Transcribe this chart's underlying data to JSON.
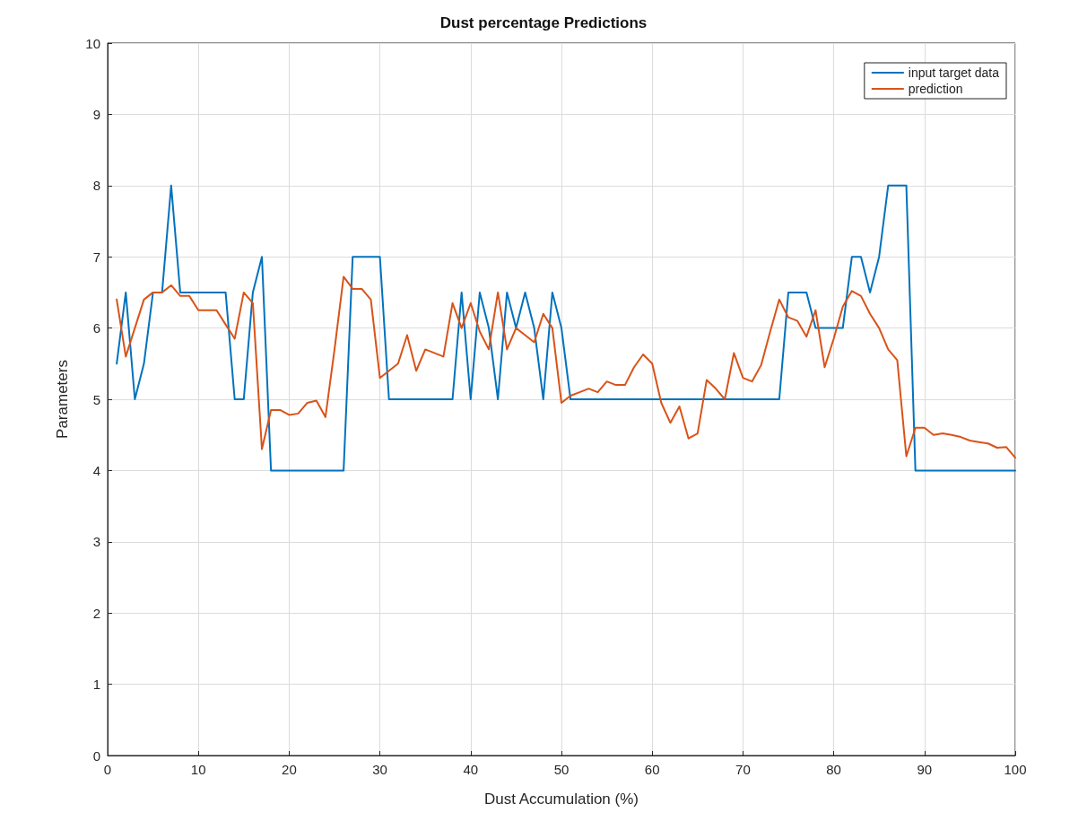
{
  "chart_data": {
    "type": "line",
    "title": "Dust percentage Predictions",
    "xlabel": "Dust Accumulation (%)",
    "ylabel": "Parameters",
    "x": [
      1,
      2,
      3,
      4,
      5,
      6,
      7,
      8,
      9,
      10,
      11,
      12,
      13,
      14,
      15,
      16,
      17,
      18,
      19,
      20,
      21,
      22,
      23,
      24,
      25,
      26,
      27,
      28,
      29,
      30,
      31,
      32,
      33,
      34,
      35,
      36,
      37,
      38,
      39,
      40,
      41,
      42,
      43,
      44,
      45,
      46,
      47,
      48,
      49,
      50,
      51,
      52,
      53,
      54,
      55,
      56,
      57,
      58,
      59,
      60,
      61,
      62,
      63,
      64,
      65,
      66,
      67,
      68,
      69,
      70,
      71,
      72,
      73,
      74,
      75,
      76,
      77,
      78,
      79,
      80,
      81,
      82,
      83,
      84,
      85,
      86,
      87,
      88,
      89,
      90,
      91,
      92,
      93,
      94,
      95,
      96,
      97,
      98,
      99,
      100
    ],
    "series": [
      {
        "name": "input target data",
        "color": "#0072bd",
        "values": [
          5.5,
          6.5,
          5,
          5.5,
          6.5,
          6.5,
          8,
          6.5,
          6.5,
          6.5,
          6.5,
          6.5,
          6.5,
          5,
          5,
          6.5,
          7,
          4,
          4,
          4,
          4,
          4,
          4,
          4,
          4,
          4,
          7,
          7,
          7,
          7,
          5,
          5,
          5,
          5,
          5,
          5,
          5,
          5,
          6.5,
          5,
          6.5,
          6,
          5,
          6.5,
          6,
          6.5,
          6,
          5,
          6.5,
          6,
          5,
          5,
          5,
          5,
          5,
          5,
          5,
          5,
          5,
          5,
          5,
          5,
          5,
          5,
          5,
          5,
          5,
          5,
          5,
          5,
          5,
          5,
          5,
          5,
          6.5,
          6.5,
          6.5,
          6,
          6,
          6,
          6,
          7,
          7,
          6.5,
          7,
          8,
          8,
          8,
          4,
          4,
          4,
          4,
          4,
          4,
          4,
          4,
          4,
          4,
          4,
          4
        ]
      },
      {
        "name": "prediction",
        "color": "#d95319",
        "values": [
          6.4,
          5.6,
          6.0,
          6.4,
          6.5,
          6.5,
          6.6,
          6.45,
          6.45,
          6.25,
          6.25,
          6.25,
          6.05,
          5.85,
          6.5,
          6.35,
          4.3,
          4.85,
          4.85,
          4.78,
          4.8,
          4.95,
          4.98,
          4.75,
          5.7,
          6.72,
          6.55,
          6.55,
          6.4,
          5.3,
          5.4,
          5.5,
          5.9,
          5.4,
          5.7,
          5.65,
          5.6,
          6.35,
          6.0,
          6.35,
          5.95,
          5.7,
          6.5,
          5.7,
          6.0,
          5.9,
          5.8,
          6.2,
          6.0,
          4.95,
          5.05,
          5.1,
          5.15,
          5.1,
          5.25,
          5.2,
          5.2,
          5.45,
          5.63,
          5.5,
          4.95,
          4.67,
          4.9,
          4.45,
          4.52,
          5.27,
          5.15,
          5.0,
          5.65,
          5.3,
          5.25,
          5.48,
          5.95,
          6.4,
          6.15,
          6.1,
          5.88,
          6.25,
          5.45,
          5.85,
          6.3,
          6.52,
          6.45,
          6.2,
          6.0,
          5.7,
          5.55,
          4.2,
          4.6,
          4.6,
          4.5,
          4.52,
          4.5,
          4.47,
          4.42,
          4.4,
          4.38,
          4.32,
          4.33,
          4.18
        ]
      }
    ],
    "xlim": [
      0,
      100
    ],
    "xticks": [
      0,
      10,
      20,
      30,
      40,
      50,
      60,
      70,
      80,
      90,
      100
    ],
    "ylim": [
      0,
      10
    ],
    "yticks": [
      0,
      1,
      2,
      3,
      4,
      5,
      6,
      7,
      8,
      9,
      10
    ],
    "grid": true,
    "legend": "top right",
    "marker": "none",
    "line_style": "solid"
  }
}
